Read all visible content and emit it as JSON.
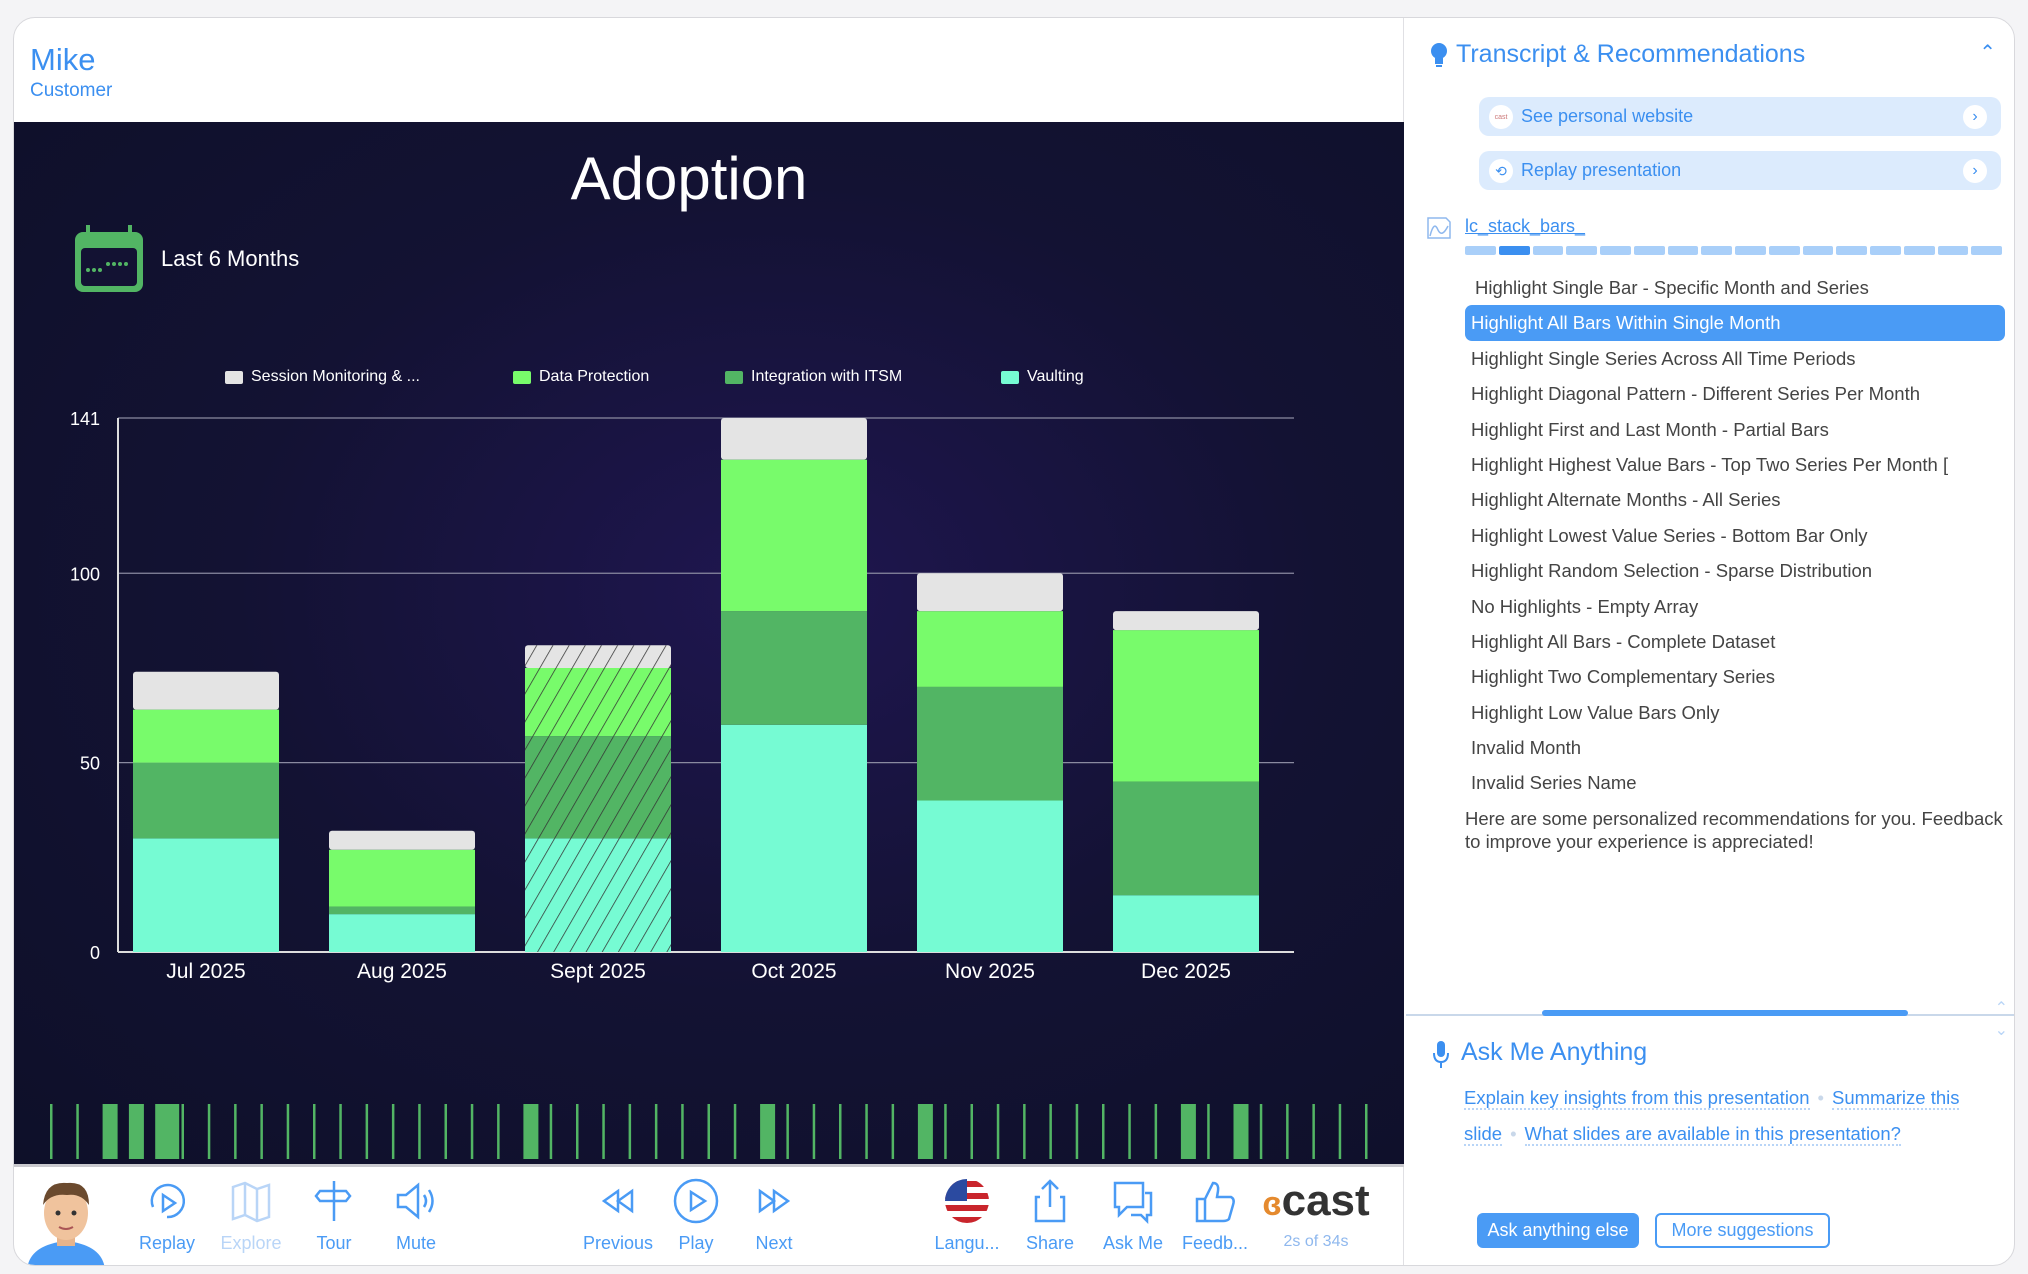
{
  "header": {
    "name": "Mike",
    "role": "Customer"
  },
  "slide": {
    "title": "Adoption",
    "period": "Last 6 Months"
  },
  "chart_data": {
    "type": "bar",
    "stacked": true,
    "title": "Adoption",
    "categories": [
      "Jul 2025",
      "Aug 2025",
      "Sept 2025",
      "Oct 2025",
      "Nov 2025",
      "Dec 2025"
    ],
    "series": [
      {
        "name": "Vaulting",
        "color": "#76fbd3",
        "values": [
          30,
          10,
          30,
          60,
          40,
          15
        ]
      },
      {
        "name": "Integration with ITSM",
        "color": "#52b564",
        "values": [
          20,
          2,
          27,
          30,
          30,
          30
        ]
      },
      {
        "name": "Data Protection",
        "color": "#78fb6b",
        "values": [
          14,
          15,
          18,
          40,
          20,
          40
        ]
      },
      {
        "name": "Session Monitoring & ...",
        "color": "#e4e4e4",
        "values": [
          10,
          5,
          6,
          11,
          10,
          5
        ]
      }
    ],
    "legend_order": [
      "Session Monitoring & ...",
      "Data Protection",
      "Integration with ITSM",
      "Vaulting"
    ],
    "highlighted_category": "Sept 2025",
    "yticks": [
      0,
      50,
      100,
      141
    ],
    "ylim": [
      0,
      141
    ],
    "grid": true,
    "legend": "top"
  },
  "toolbar": {
    "replay": "Replay",
    "explore": "Explore",
    "tour": "Tour",
    "mute": "Mute",
    "previous": "Previous",
    "play": "Play",
    "next": "Next",
    "language": "Langu...",
    "share": "Share",
    "askme": "Ask Me",
    "feedback": "Feedb...",
    "brand": "cast",
    "time": "2s of 34s"
  },
  "panel": {
    "title": "Transcript & Recommendations",
    "website": "See personal website",
    "website_icon_text": "cast",
    "replay": "Replay presentation",
    "section": "lc_stack_bars_",
    "progress_segments": 16,
    "progress_current": 1,
    "items": [
      "Highlight Single Bar - Specific Month and Series",
      "Highlight All Bars Within Single Month",
      "Highlight Single Series Across All Time Periods",
      "Highlight Diagonal Pattern - Different Series Per Month",
      "Highlight First and Last Month - Partial Bars",
      "Highlight Highest Value Bars - Top Two Series Per Month [",
      "Highlight Alternate Months - All Series",
      "Highlight Lowest Value Series - Bottom Bar Only",
      "Highlight Random Selection - Sparse Distribution",
      "No Highlights - Empty Array",
      "Highlight All Bars - Complete Dataset",
      "Highlight Two Complementary Series",
      "Highlight Low Value Bars Only",
      "Invalid Month",
      "Invalid Series Name"
    ],
    "active_index": 1,
    "message": "Here are some personalized recommendations for you. Feedback to improve your experience is appreciated!"
  },
  "ask": {
    "title": "Ask Me Anything",
    "suggestions": [
      "Explain key insights from this presentation",
      "Summarize this slide",
      "What slides are available in this presentation?"
    ],
    "ask_button": "Ask anything else",
    "more_button": "More suggestions"
  }
}
